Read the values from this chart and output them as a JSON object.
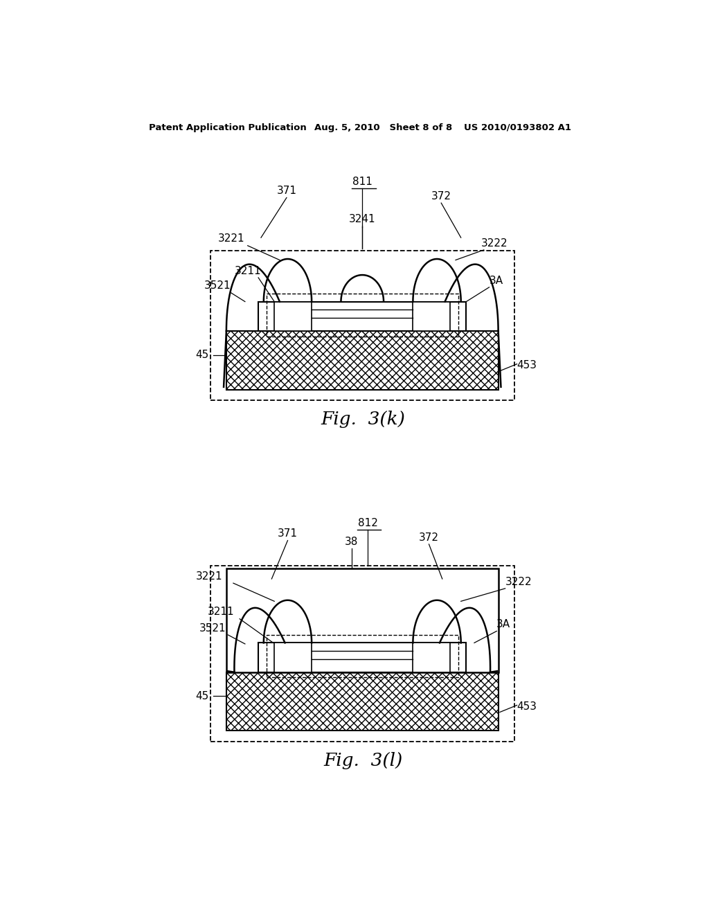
{
  "bg_color": "#ffffff",
  "line_color": "#000000",
  "header_left": "Patent Application Publication",
  "header_mid": "Aug. 5, 2010   Sheet 8 of 8",
  "header_right": "US 2010/0193802 A1",
  "fig1_caption": "Fig.  3(k)",
  "fig2_caption": "Fig.  3(l)",
  "fig1_ref": "811",
  "fig2_ref": "812"
}
